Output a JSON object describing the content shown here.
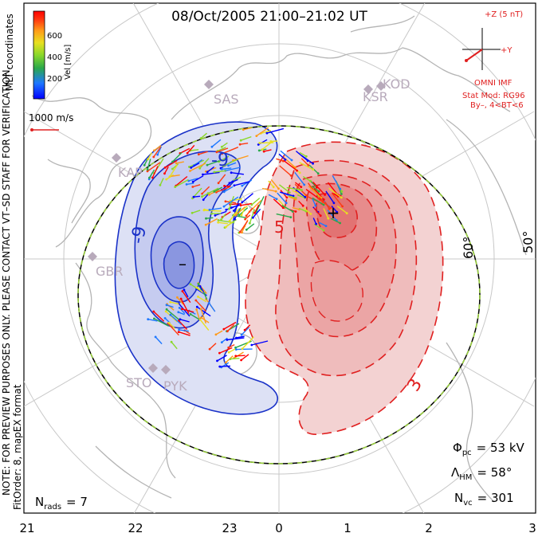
{
  "title": "08/Oct/2005 21:00–21:02 UT",
  "coord_label": "MLT coordinates",
  "vel_label": "Vel [m/s]",
  "colorbar": {
    "ticks": [
      "600",
      "400",
      "200"
    ],
    "colors": [
      "#0000ff",
      "#1e78ff",
      "#2aa84a",
      "#8ad82a",
      "#e8e020",
      "#ff9a18",
      "#ff3a10",
      "#ff0000"
    ]
  },
  "scale_label": "1000 m/s",
  "note": [
    "NOTE: FOR PREVIEW PURPOSES ONLY.  PLEASE CONTACT VT–SD STAFF FOR VERIFICATION.",
    "FitOrder: 8, mapEX format"
  ],
  "imf": {
    "z_label": "+Z (5 nT)",
    "y_label": "+Y",
    "source": "OMNI IMF",
    "model": "Stat Mod: RG96",
    "condition": "By–, 4<BT<6"
  },
  "stations": [
    "SAS",
    "KSR",
    "KOD",
    "KAP",
    "GBR",
    "STO",
    "PYK"
  ],
  "lat_labels": [
    "60°",
    "50°"
  ],
  "contour_labels": {
    "neg1": "-9",
    "neg2": "-9",
    "pos1": "5",
    "pos2": "3"
  },
  "stats": {
    "phi_sym": "Φ",
    "phi_sub": "pc",
    "phi_val": "= 53 kV",
    "lam_sym": "Λ",
    "lam_sub": "HM",
    "lam_val": "= 58°",
    "nvc_sym": "N",
    "nvc_sub": "vc",
    "nvc_val": "= 301",
    "nrads_sym": "N",
    "nrads_sub": "rads",
    "nrads_val": "= 7"
  },
  "mlt_ticks": [
    "21",
    "22",
    "23",
    "0",
    "1",
    "2",
    "3"
  ],
  "colors": {
    "neg": "#1a32c8",
    "pos": "#e02020",
    "coast": "#b4b4b4",
    "grid": "#c8c8c8",
    "hmb_dash": "#9ad23c",
    "station": "#b8aabb"
  }
}
